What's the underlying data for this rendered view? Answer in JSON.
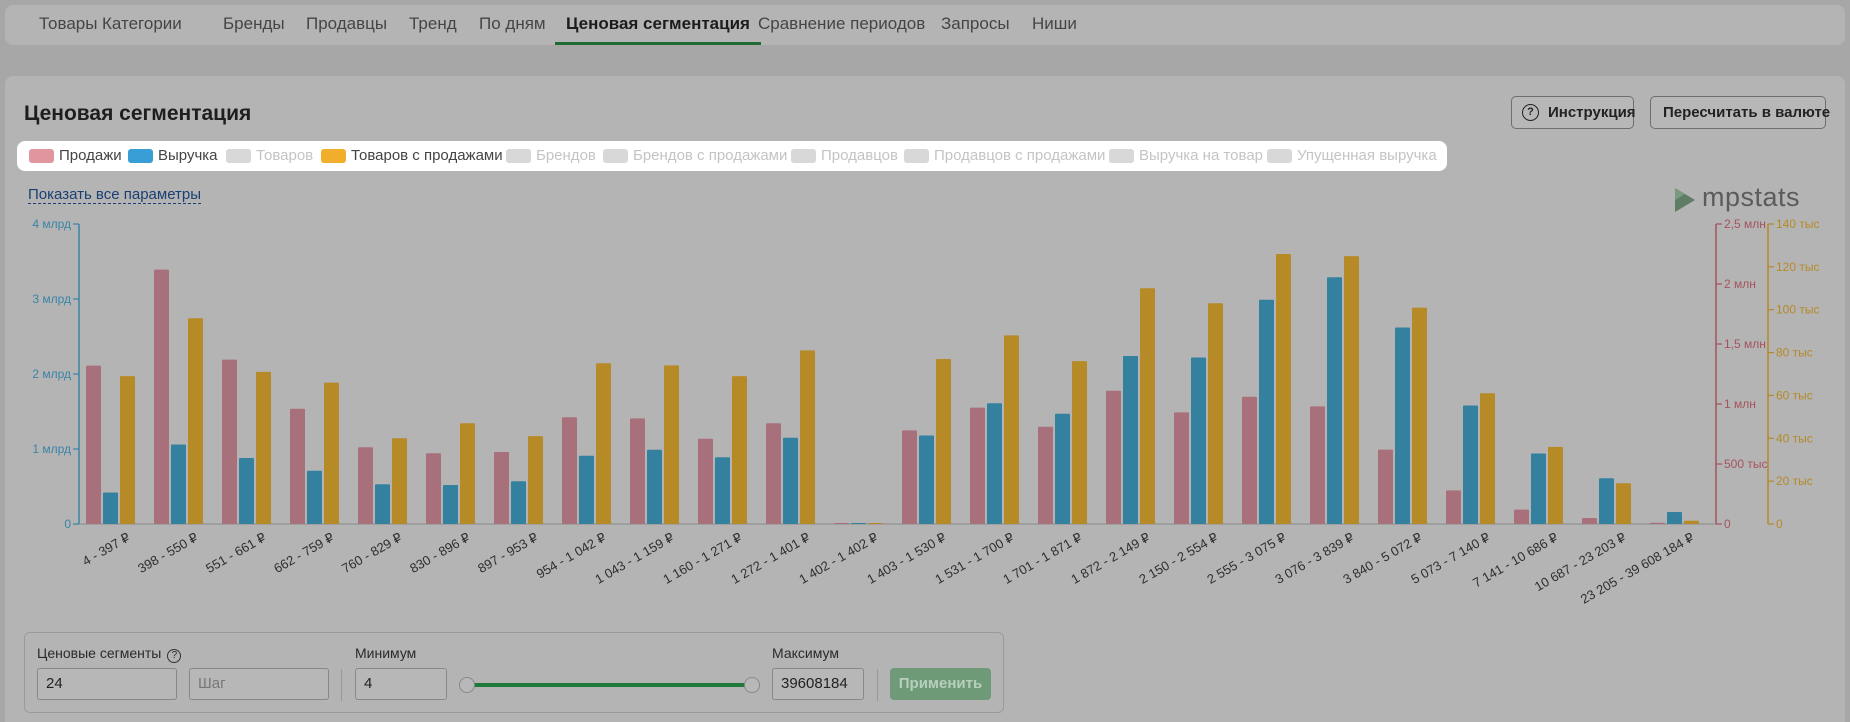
{
  "nav": {
    "tabs": [
      {
        "label": "Товары"
      },
      {
        "label": "Категории"
      },
      {
        "label": "Бренды"
      },
      {
        "label": "Продавцы"
      },
      {
        "label": "Тренд"
      },
      {
        "label": "По дням"
      },
      {
        "label": "Ценовая сегментация",
        "active": true
      },
      {
        "label": "Сравнение периодов"
      },
      {
        "label": "Запросы"
      },
      {
        "label": "Ниши"
      }
    ]
  },
  "page": {
    "title": "Ценовая сегментация",
    "help_button": "Инструкция",
    "currency_button": "Пересчитать в валюте",
    "show_all_link": "Показать все параметры",
    "logo_text": "mpstats"
  },
  "legend": [
    {
      "label": "Продажи",
      "active": true,
      "color": "#e0959f"
    },
    {
      "label": "Выручка",
      "active": true,
      "color": "#3a9ed6"
    },
    {
      "label": "Товаров",
      "active": false
    },
    {
      "label": "Товаров с продажами",
      "active": true,
      "color": "#f0ae2b"
    },
    {
      "label": "Брендов",
      "active": false
    },
    {
      "label": "Брендов с продажами",
      "active": false
    },
    {
      "label": "Продавцов",
      "active": false
    },
    {
      "label": "Продавцов с продажами",
      "active": false
    },
    {
      "label": "Выручка на товар",
      "active": false
    },
    {
      "label": "Упущенная выручка",
      "active": false
    }
  ],
  "colors": {
    "sales": "#a7707a",
    "revenue": "#34809f",
    "items_with_sales": "#b58a27",
    "axis_left": "#3a84a6",
    "axis_right_mid": "#a4535d",
    "axis_right": "#b58a27"
  },
  "chart_data": {
    "type": "bar",
    "categories": [
      "4 - 397 ₽",
      "398 - 550 ₽",
      "551 - 661 ₽",
      "662 - 759 ₽",
      "760 - 829 ₽",
      "830 - 896 ₽",
      "897 - 953 ₽",
      "954 - 1 042 ₽",
      "1 043 - 1 159 ₽",
      "1 160 - 1 271 ₽",
      "1 272 - 1 401 ₽",
      "1 402 - 1 402 ₽",
      "1 403 - 1 530 ₽",
      "1 531 - 1 700 ₽",
      "1 701 - 1 871 ₽",
      "1 872 - 2 149 ₽",
      "2 150 - 2 554 ₽",
      "2 555 - 3 075 ₽",
      "3 076 - 3 839 ₽",
      "3 840 - 5 072 ₽",
      "5 073 - 7 140 ₽",
      "7 141 - 10 686 ₽",
      "10 687 - 23 203 ₽",
      "23 205 - 39 608 184 ₽"
    ],
    "series": [
      {
        "name": "Продажи",
        "axis": "sales",
        "values": [
          1320000,
          2120000,
          1370000,
          960000,
          640000,
          590000,
          600000,
          890000,
          880000,
          710000,
          840000,
          0,
          780000,
          970000,
          810000,
          1110000,
          930000,
          1060000,
          980000,
          620000,
          280000,
          120000,
          50000,
          10000
        ]
      },
      {
        "name": "Выручка",
        "axis": "revenue",
        "values": [
          420000000,
          1060000000,
          880000000,
          710000000,
          530000000,
          520000000,
          570000000,
          910000000,
          990000000,
          890000000,
          1150000000,
          0,
          1180000000,
          1610000000,
          1470000000,
          2240000000,
          2220000000,
          2990000000,
          3290000000,
          2620000000,
          1580000000,
          940000000,
          610000000,
          160000000
        ]
      },
      {
        "name": "Товаров с продажами",
        "axis": "items",
        "values": [
          69000,
          96000,
          71000,
          66000,
          40000,
          47000,
          41000,
          75000,
          74000,
          69000,
          81000,
          0,
          77000,
          88000,
          76000,
          110000,
          103000,
          126000,
          125000,
          101000,
          61000,
          36000,
          19000,
          1500
        ]
      }
    ],
    "axes": {
      "revenue": {
        "ticks": [
          "0",
          "1 млрд",
          "2 млрд",
          "3 млрд",
          "4 млрд"
        ],
        "max": 4000000000
      },
      "sales": {
        "ticks": [
          "0",
          "500 тыс",
          "1 млн",
          "1,5 млн",
          "2 млн",
          "2,5 млн"
        ],
        "max": 2500000
      },
      "items": {
        "ticks": [
          "0",
          "20 тыс",
          "40 тыс",
          "60 тыс",
          "80 тыс",
          "100 тыс",
          "120 тыс",
          "140 тыс"
        ],
        "max": 140000
      }
    }
  },
  "controls": {
    "segments_label": "Ценовые сегменты",
    "segments_value": "24",
    "step_placeholder": "Шаг",
    "min_label": "Минимум",
    "min_value": "4",
    "max_label": "Максимум",
    "max_value": "39608184",
    "apply_label": "Применить"
  }
}
